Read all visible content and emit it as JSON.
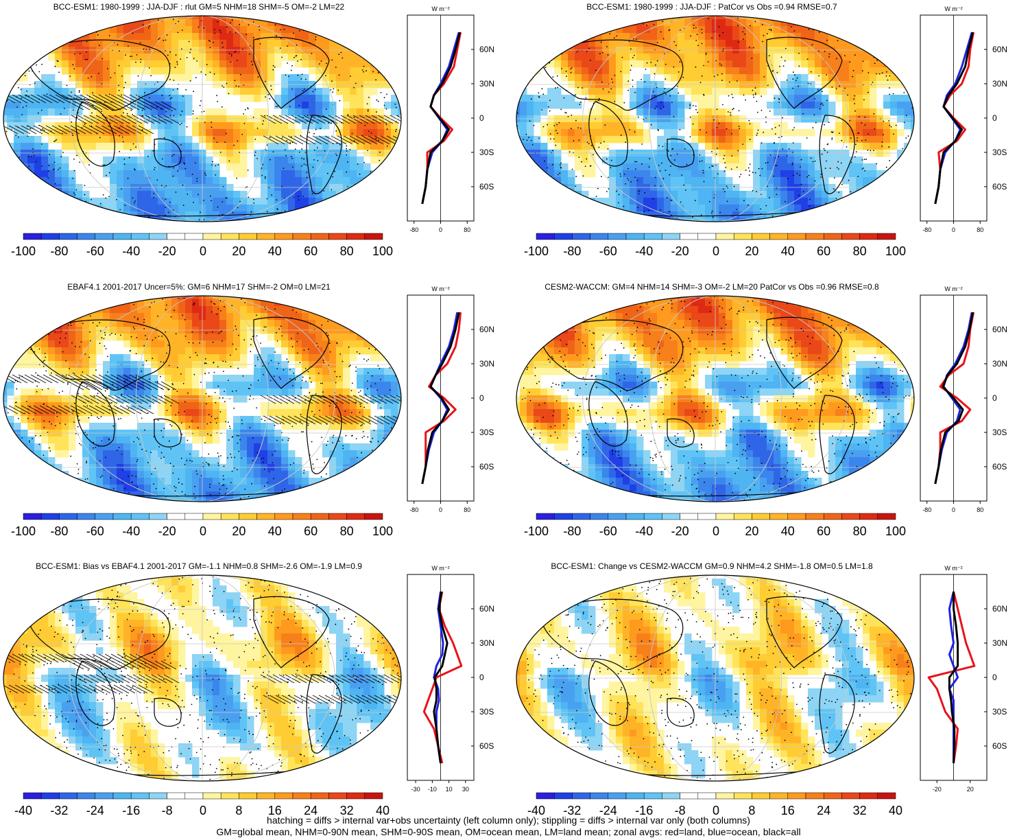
{
  "colors": {
    "ramp_full": [
      "#2b1fe0",
      "#1f40e6",
      "#2f66e8",
      "#3b86ec",
      "#4aa0f0",
      "#4fb4f2",
      "#5fc4f5",
      "#8ed4f4",
      "#ffffff",
      "#ffffff",
      "#fff4a0",
      "#ffe35a",
      "#ffcc33",
      "#ffb428",
      "#ff9a1e",
      "#f7801a",
      "#f06418",
      "#ea4818",
      "#de2a14",
      "#c81410"
    ],
    "profile_land": "#e8131b",
    "profile_ocean": "#1d22e0",
    "profile_all": "#000000",
    "gridline": "#c8c8c8"
  },
  "panels": [
    {
      "id": "p1",
      "title": "BCC-ESM1: 1980-1999 : JJA-DJF : rlut GM=5 NHM=18 SHM=-5 OM=-2 LM=22",
      "colorbar_labels": [
        "-100",
        "-80",
        "-60",
        "-40",
        "-20",
        "0",
        "20",
        "40",
        "60",
        "80",
        "100"
      ],
      "profile_unit": "W m⁻²",
      "profile_xticks": [
        "-80",
        "0",
        "80"
      ],
      "lat_labels": [
        "60N",
        "30N",
        "0",
        "30S",
        "60S"
      ],
      "hatching": true
    },
    {
      "id": "p2",
      "title": "BCC-ESM1: 1980-1999 : JJA-DJF : PatCor vs Obs =0.94 RMSE=0.7",
      "colorbar_labels": [
        "-100",
        "-80",
        "-60",
        "-40",
        "-20",
        "0",
        "20",
        "40",
        "60",
        "80",
        "100"
      ],
      "profile_unit": "W m⁻²",
      "profile_xticks": [
        "-80",
        "0",
        "80"
      ],
      "lat_labels": [
        "60N",
        "30N",
        "0",
        "30S",
        "60S"
      ],
      "hatching": false
    },
    {
      "id": "p3",
      "title": "EBAF4.1 2001-2017 Uncer=5%: GM=6 NHM=17 SHM=-2 OM=0 LM=21",
      "colorbar_labels": [
        "-100",
        "-80",
        "-60",
        "-40",
        "-20",
        "0",
        "20",
        "40",
        "60",
        "80",
        "100"
      ],
      "profile_unit": "W m⁻²",
      "profile_xticks": [
        "-80",
        "0",
        "80"
      ],
      "lat_labels": [
        "60N",
        "30N",
        "0",
        "30S",
        "60S"
      ],
      "hatching": true
    },
    {
      "id": "p4",
      "title": "CESM2-WACCM: GM=4 NHM=14 SHM=-3 OM=-2 LM=20 PatCor vs Obs =0.96 RMSE=0.8",
      "colorbar_labels": [
        "-100",
        "-80",
        "-60",
        "-40",
        "-20",
        "0",
        "20",
        "40",
        "60",
        "80",
        "100"
      ],
      "profile_unit": "W m⁻²",
      "profile_xticks": [
        "-80",
        "0",
        "80"
      ],
      "lat_labels": [
        "60N",
        "30N",
        "0",
        "30S",
        "60S"
      ],
      "hatching": false
    },
    {
      "id": "p5",
      "title": "BCC-ESM1: Bias vs EBAF4.1 2001-2017 GM=-1.1 NHM=0.8 SHM=-2.6 OM=-1.9 LM=0.9",
      "colorbar_labels": [
        "-40",
        "-32",
        "-24",
        "-16",
        "-8",
        "0",
        "8",
        "16",
        "24",
        "32",
        "40"
      ],
      "profile_unit": "W m⁻²",
      "profile_xticks": [
        "-30",
        "-10",
        "10",
        "30"
      ],
      "lat_labels": [
        "60N",
        "30N",
        "0",
        "30S",
        "60S"
      ],
      "hatching": true
    },
    {
      "id": "p6",
      "title": "BCC-ESM1: Change vs CESM2-WACCM GM=0.9 NHM=4.2 SHM=-1.8 OM=0.5 LM=1.8",
      "colorbar_labels": [
        "-40",
        "-32",
        "-24",
        "-16",
        "-8",
        "0",
        "8",
        "16",
        "24",
        "32",
        "40"
      ],
      "profile_unit": "W m⁻²",
      "profile_xticks": [
        "-20",
        "20"
      ],
      "lat_labels": [
        "60N",
        "30N",
        "0",
        "30S",
        "60S"
      ],
      "hatching": false
    }
  ],
  "footer": {
    "line1": "hatching = diffs > internal var+obs uncertainty (left column only); stippling = diffs > internal var only (both columns)",
    "line2": "GM=global mean, NHM=0-90N mean, SHM=0-90S mean, OM=ocean mean, LM=land mean; zonal avgs: red=land, blue=ocean, black=all"
  },
  "chart_data": [
    {
      "type": "heatmap",
      "title": "BCC-ESM1: 1980-1999 : JJA-DJF : rlut GM=5 NHM=18 SHM=-5 OM=-2 LM=22",
      "colorbar_range": [
        -100,
        100
      ],
      "zonal_profile": {
        "lat": [
          75,
          60,
          45,
          30,
          20,
          10,
          0,
          -10,
          -20,
          -30,
          -45,
          -60,
          -75
        ],
        "land": [
          60,
          50,
          40,
          10,
          -20,
          -30,
          0,
          35,
          10,
          -40,
          -40,
          -45,
          -55
        ],
        "ocean": [
          55,
          40,
          25,
          0,
          -20,
          -30,
          -5,
          20,
          5,
          -25,
          -40,
          -45,
          -55
        ],
        "all": [
          58,
          45,
          30,
          5,
          -20,
          -30,
          -3,
          25,
          5,
          -30,
          -40,
          -45,
          -55
        ]
      }
    },
    {
      "type": "heatmap",
      "title": "BCC-ESM1: 1980-1999 : JJA-DJF : PatCor vs Obs =0.94 RMSE=0.7",
      "colorbar_range": [
        -100,
        100
      ],
      "zonal_profile": {
        "lat": [
          75,
          60,
          45,
          30,
          20,
          10,
          0,
          -10,
          -20,
          -30,
          -45,
          -60,
          -75
        ],
        "land": [
          60,
          50,
          45,
          25,
          -10,
          -30,
          0,
          35,
          10,
          -45,
          -40,
          -45,
          -55
        ],
        "ocean": [
          55,
          40,
          25,
          5,
          -20,
          -30,
          -5,
          20,
          5,
          -25,
          -40,
          -45,
          -55
        ],
        "all": [
          58,
          45,
          35,
          10,
          -15,
          -30,
          -3,
          25,
          5,
          -30,
          -40,
          -45,
          -55
        ]
      }
    },
    {
      "type": "heatmap",
      "title": "EBAF4.1 2001-2017 Uncer=5%: GM=6 NHM=17 SHM=-2 OM=0 LM=21",
      "colorbar_range": [
        -100,
        100
      ],
      "zonal_profile": {
        "lat": [
          75,
          60,
          45,
          30,
          20,
          10,
          0,
          -10,
          -20,
          -30,
          -45,
          -60,
          -75
        ],
        "land": [
          60,
          55,
          45,
          20,
          -15,
          -35,
          10,
          45,
          10,
          -45,
          -45,
          -45,
          -55
        ],
        "ocean": [
          50,
          40,
          25,
          0,
          -15,
          -30,
          0,
          20,
          5,
          -20,
          -35,
          -45,
          -55
        ],
        "all": [
          55,
          45,
          30,
          5,
          -15,
          -30,
          3,
          25,
          5,
          -25,
          -38,
          -45,
          -55
        ]
      }
    },
    {
      "type": "heatmap",
      "title": "CESM2-WACCM: GM=4 NHM=14 SHM=-3 OM=-2 LM=20 PatCor vs Obs =0.96 RMSE=0.8",
      "colorbar_range": [
        -100,
        100
      ],
      "zonal_profile": {
        "lat": [
          75,
          60,
          45,
          30,
          20,
          10,
          0,
          -10,
          -20,
          -30,
          -45,
          -60,
          -75
        ],
        "land": [
          60,
          50,
          45,
          30,
          -15,
          -40,
          10,
          50,
          25,
          -40,
          -40,
          -45,
          -55
        ],
        "ocean": [
          55,
          45,
          30,
          5,
          -20,
          -30,
          -5,
          20,
          10,
          -20,
          -35,
          -45,
          -55
        ],
        "all": [
          58,
          48,
          35,
          10,
          -18,
          -32,
          0,
          28,
          15,
          -25,
          -38,
          -45,
          -55
        ]
      }
    },
    {
      "type": "heatmap",
      "title": "BCC-ESM1: Bias vs EBAF4.1 2001-2017 GM=-1.1 NHM=0.8 SHM=-2.6 OM=-1.9 LM=0.9",
      "colorbar_range": [
        -40,
        40
      ],
      "zonal_profile": {
        "lat": [
          75,
          60,
          45,
          30,
          20,
          10,
          0,
          -10,
          -20,
          -30,
          -45,
          -60,
          -75
        ],
        "land": [
          2,
          -2,
          5,
          15,
          20,
          25,
          -5,
          -10,
          -15,
          -20,
          -8,
          -3,
          2
        ],
        "ocean": [
          0,
          -3,
          0,
          3,
          2,
          -5,
          -8,
          -3,
          -2,
          -5,
          -5,
          -3,
          0
        ],
        "all": [
          1,
          -2,
          2,
          8,
          5,
          2,
          -7,
          -5,
          -5,
          -8,
          -5,
          -3,
          0
        ]
      }
    },
    {
      "type": "heatmap",
      "title": "BCC-ESM1: Change vs CESM2-WACCM GM=0.9 NHM=4.2 SHM=-1.8 OM=0.5 LM=1.8",
      "colorbar_range": [
        -40,
        40
      ],
      "zonal_profile": {
        "lat": [
          75,
          60,
          45,
          30,
          20,
          10,
          0,
          -10,
          -20,
          -30,
          -45,
          -60,
          -75
        ],
        "land": [
          0,
          5,
          10,
          15,
          20,
          25,
          -30,
          -20,
          -15,
          -10,
          5,
          3,
          0
        ],
        "ocean": [
          0,
          -5,
          -3,
          0,
          -5,
          0,
          5,
          -5,
          0,
          0,
          0,
          0,
          0
        ],
        "all": [
          0,
          0,
          3,
          5,
          5,
          5,
          -5,
          -5,
          -3,
          -2,
          1,
          1,
          0
        ]
      }
    }
  ]
}
